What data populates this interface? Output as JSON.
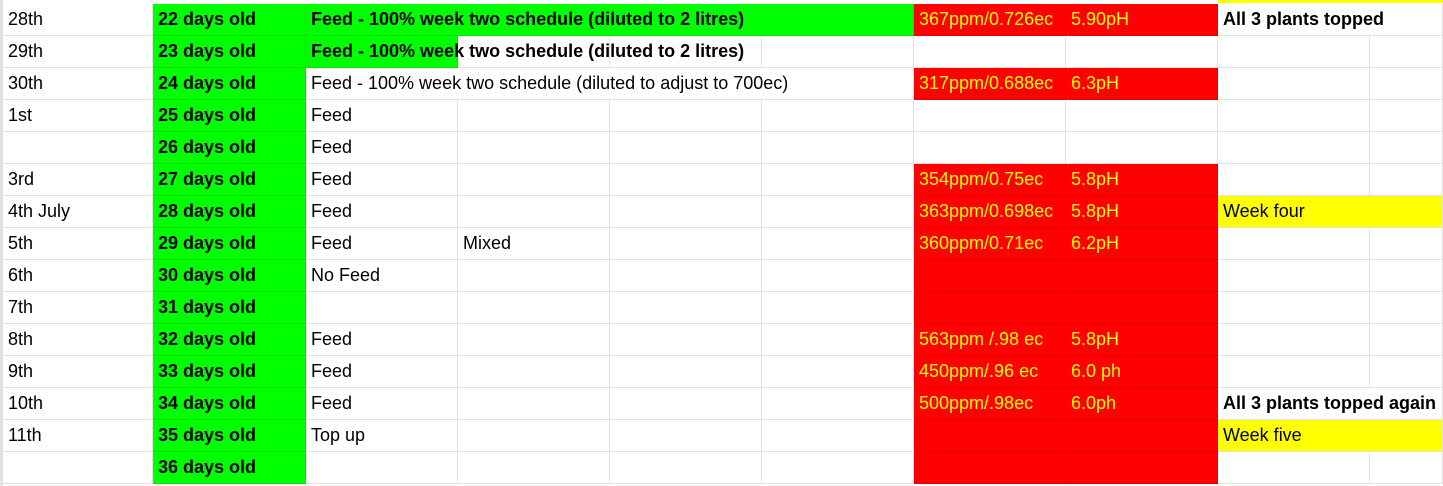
{
  "colors": {
    "green": "#00ff00",
    "red": "#ff0000",
    "yellow": "#ffff00",
    "red_text": "#ffff00"
  },
  "rows": [
    {
      "date": "28th",
      "age": "22 days old",
      "feed": "Feed - 100% week two schedule (diluted to 2 litres)",
      "feed_style": "green-bold-wide",
      "note": "",
      "ppm": "367ppm/0.726ec",
      "ph": "5.90pH",
      "red": true,
      "comment": "All 3 plants topped",
      "comment_bold": true,
      "yellow": false
    },
    {
      "date": "29th",
      "age": "23 days old",
      "feed": "Feed - 100% week two schedule (diluted to 2 litres)",
      "feed_style": "green-bold",
      "note": "",
      "ppm": "",
      "ph": "",
      "red": false,
      "comment": "",
      "yellow": false
    },
    {
      "date": "30th",
      "age": "24 days old",
      "feed": "Feed - 100% week two schedule (diluted to adjust to 700ec)",
      "feed_style": "plain",
      "note": "",
      "ppm": "317ppm/0.688ec",
      "ph": "6.3pH",
      "red": true,
      "comment": "",
      "yellow": false
    },
    {
      "date": "1st",
      "age": "25 days old",
      "feed": "Feed",
      "feed_style": "plain",
      "note": "",
      "ppm": "",
      "ph": "",
      "red": false,
      "comment": "",
      "yellow": false
    },
    {
      "date": "",
      "age": "26 days old",
      "feed": "Feed",
      "feed_style": "plain",
      "note": "",
      "ppm": "",
      "ph": "",
      "red": false,
      "comment": "",
      "yellow": false
    },
    {
      "date": "3rd",
      "age": "27 days old",
      "feed": "Feed",
      "feed_style": "plain",
      "note": "",
      "ppm": "354ppm/0.75ec",
      "ph": "5.8pH",
      "red": true,
      "comment": "",
      "yellow": false
    },
    {
      "date": "4th July",
      "age": "28 days old",
      "feed": "Feed",
      "feed_style": "plain",
      "note": "",
      "ppm": "363ppm/0.698ec",
      "ph": "5.8pH",
      "red": true,
      "comment": "Week four",
      "yellow": true
    },
    {
      "date": "5th",
      "age": "29 days old",
      "feed": "Feed",
      "feed_style": "plain",
      "note": "Mixed",
      "ppm": "360ppm/0.71ec",
      "ph": "6.2pH",
      "red": true,
      "comment": "",
      "yellow": false
    },
    {
      "date": "6th",
      "age": "30 days old",
      "feed": "No Feed",
      "feed_style": "plain",
      "note": "",
      "ppm": "",
      "ph": "",
      "red": true,
      "comment": "",
      "yellow": false
    },
    {
      "date": "7th",
      "age": "31 days old",
      "feed": "",
      "feed_style": "plain",
      "note": "",
      "ppm": "",
      "ph": "",
      "red": true,
      "comment": "",
      "yellow": false
    },
    {
      "date": "8th",
      "age": "32 days old",
      "feed": "Feed",
      "feed_style": "plain",
      "note": "",
      "ppm": "563ppm /.98 ec",
      "ph": "5.8pH",
      "red": true,
      "comment": "",
      "yellow": false
    },
    {
      "date": "9th",
      "age": "33 days old",
      "feed": "Feed",
      "feed_style": "plain",
      "note": "",
      "ppm": "450ppm/.96 ec",
      "ph": "6.0 ph",
      "red": true,
      "comment": "",
      "yellow": false
    },
    {
      "date": "10th",
      "age": "34 days old",
      "feed": "Feed",
      "feed_style": "plain",
      "note": "",
      "ppm": "500ppm/.98ec",
      "ph": "6.0ph",
      "red": true,
      "comment": "All 3 plants topped again",
      "comment_bold": true,
      "yellow": false
    },
    {
      "date": "11th",
      "age": "35 days old",
      "feed": "Top up",
      "feed_style": "plain",
      "note": "",
      "ppm": "",
      "ph": "",
      "red": true,
      "comment": "Week five",
      "yellow": true
    },
    {
      "date": "",
      "age": "36 days old",
      "feed": "",
      "feed_style": "plain",
      "note": "",
      "ppm": "",
      "ph": "",
      "red": true,
      "comment": "",
      "yellow": false
    }
  ]
}
